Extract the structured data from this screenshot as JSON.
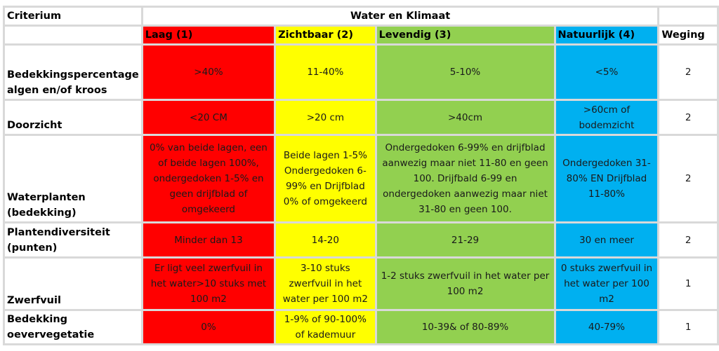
{
  "header": {
    "criterium_label": "Criterium",
    "group_title": "Water en Klimaat",
    "levels": [
      "Laag (1)",
      "Zichtbaar (2)",
      "Levendig (3)",
      "Natuurlijk (4)"
    ],
    "weging_label": "Weging"
  },
  "colors": {
    "laag": "#ff0000",
    "zichtbaar": "#ffff00",
    "levendig": "#92d050",
    "natuurlijk": "#00b0f0",
    "grid": "#d9d9d9"
  },
  "rows": [
    {
      "criterium": "Bedekkingspercentage algen en/of kroos",
      "laag": ">40%",
      "zichtbaar": "11-40%",
      "levendig": "5-10%",
      "natuurlijk": "<5%",
      "weging": "2"
    },
    {
      "criterium": "Doorzicht",
      "laag": "<20 CM",
      "zichtbaar": ">20 cm",
      "levendig": ">40cm",
      "natuurlijk": ">60cm of bodemzicht",
      "weging": "2"
    },
    {
      "criterium": "Waterplanten (bedekking)",
      "laag": "0% van beide lagen, een of beide lagen 100%, ondergedoken 1-5% en geen drijfblad of omgekeerd",
      "zichtbaar": "Beide lagen 1-5% Ondergedoken 6-99% en Drijfblad 0% of omgekeerd",
      "levendig": "Ondergedoken 6-99% en drijfblad aanwezig maar niet 11-80 en geen 100. Drijfbald 6-99 en ondergedoken aanwezig maar niet 31-80 en geen 100.",
      "natuurlijk": "Ondergedoken 31-80% EN Drijfblad 11-80%",
      "weging": "2"
    },
    {
      "criterium": "Plantendiversiteit (punten)",
      "laag": "Minder dan 13",
      "zichtbaar": "14-20",
      "levendig": "21-29",
      "natuurlijk": "30 en meer",
      "weging": "2"
    },
    {
      "criterium": "Zwerfvuil",
      "laag": "Er ligt veel zwerfvuil in het water>10 stuks met 100 m2",
      "zichtbaar": "3-10 stuks zwerfvuil in het water per 100 m2",
      "levendig": "1-2 stuks zwerfvuil in het water per 100 m2",
      "natuurlijk": "0 stuks zwerfvuil in het water per 100 m2",
      "weging": "1"
    },
    {
      "criterium": "Bedekking oevervegetatie",
      "laag": "0%",
      "zichtbaar": "1-9% of 90-100% of kademuur",
      "levendig": "10-39& of 80-89%",
      "natuurlijk": "40-79%",
      "weging": "1"
    }
  ]
}
